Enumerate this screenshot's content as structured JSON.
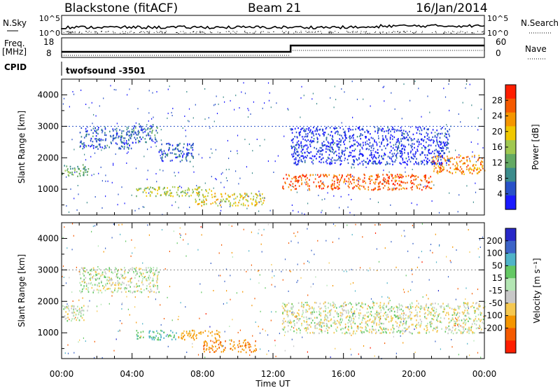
{
  "header": {
    "title": "Blackstone (fitACF)",
    "beam": "Beam 21",
    "date": "16/Jan/2014"
  },
  "strips": {
    "nsky": {
      "label": "N.Sky",
      "ticks": [
        "10^5",
        "10^0"
      ]
    },
    "nsearch": {
      "label": "N.Search",
      "ticks": [
        "10^5",
        "10^0"
      ]
    },
    "freq": {
      "label_top": "Freq.",
      "label_unit": "[MHz]",
      "ticks": [
        "18",
        "8"
      ]
    },
    "nave": {
      "label": "Nave",
      "ticks": [
        "60",
        "0"
      ]
    },
    "cpid": {
      "label": "CPID",
      "value": "twofsound  -3501"
    }
  },
  "chart_data": [
    {
      "type": "heatmap",
      "name": "power",
      "ylabel": "Slant Range [km]",
      "xlabel": "",
      "x_ticks": [
        "00:00",
        "04:00",
        "08:00",
        "12:00",
        "16:00",
        "20:00",
        "00:00"
      ],
      "x_range_hours": [
        0,
        24
      ],
      "y_ticks": [
        1000,
        2000,
        3000,
        4000
      ],
      "y_range_km": [
        180,
        4500
      ],
      "colorbar": {
        "label": "Power [dB]",
        "ticks": [
          4,
          8,
          12,
          16,
          20,
          24,
          28
        ],
        "range": [
          0,
          32
        ],
        "colors": [
          "#1a1aff",
          "#2851c8",
          "#3c8c8c",
          "#64aa64",
          "#a0c850",
          "#f0c800",
          "#f59600",
          "#f55a00",
          "#ff1e00"
        ]
      },
      "bands": [
        {
          "t0": 0,
          "t1": 1.5,
          "r0": 1400,
          "r1": 1800,
          "level": 12
        },
        {
          "t0": 1.0,
          "t1": 4.0,
          "r0": 2300,
          "r1": 3000,
          "level": 6
        },
        {
          "t0": 4.0,
          "t1": 5.5,
          "r0": 2500,
          "r1": 3100,
          "level": 7
        },
        {
          "t0": 5.5,
          "t1": 7.5,
          "r0": 1900,
          "r1": 2500,
          "level": 6
        },
        {
          "t0": 4.2,
          "t1": 8.5,
          "r0": 800,
          "r1": 1100,
          "level": 16
        },
        {
          "t0": 7.5,
          "t1": 11.5,
          "r0": 500,
          "r1": 900,
          "level": 19
        },
        {
          "t0": 12.5,
          "t1": 21.0,
          "r0": 1000,
          "r1": 1500,
          "level": 27
        },
        {
          "t0": 21.0,
          "t1": 24.0,
          "r0": 1500,
          "r1": 2100,
          "level": 24
        },
        {
          "t0": 13.0,
          "t1": 22.0,
          "r0": 1800,
          "r1": 3000,
          "level": 3
        }
      ]
    },
    {
      "type": "heatmap",
      "name": "velocity",
      "ylabel": "Slant Range [km]",
      "xlabel": "Time UT",
      "x_ticks": [
        "00:00",
        "04:00",
        "08:00",
        "12:00",
        "16:00",
        "20:00",
        "00:00"
      ],
      "x_range_hours": [
        0,
        24
      ],
      "y_ticks": [
        1000,
        2000,
        3000,
        4000
      ],
      "y_range_km": [
        180,
        4500
      ],
      "colorbar": {
        "label": "Velocity [m s⁻¹]",
        "ticks": [
          200,
          100,
          50,
          15,
          -15,
          -50,
          -100,
          -200
        ],
        "colors": [
          "#2828c8",
          "#3c64c8",
          "#50b4c8",
          "#64c864",
          "#b4e6b4",
          "#c8c8c8",
          "#f5c850",
          "#f59600",
          "#f55a00",
          "#ff1e00"
        ]
      },
      "bands": [
        {
          "t0": 0,
          "t1": 1.5,
          "r0": 1400,
          "r1": 1900,
          "vel": -5
        },
        {
          "t0": 1.0,
          "t1": 5.5,
          "r0": 2300,
          "r1": 3100,
          "vel": 0
        },
        {
          "t0": 4.2,
          "t1": 6.5,
          "r0": 800,
          "r1": 1100,
          "vel": 60
        },
        {
          "t0": 6.5,
          "t1": 9.0,
          "r0": 800,
          "r1": 1100,
          "vel": -60
        },
        {
          "t0": 8.0,
          "t1": 11.0,
          "r0": 400,
          "r1": 800,
          "vel": -90
        },
        {
          "t0": 12.5,
          "t1": 24.0,
          "r0": 1000,
          "r1": 2000,
          "vel": -5
        }
      ]
    }
  ]
}
